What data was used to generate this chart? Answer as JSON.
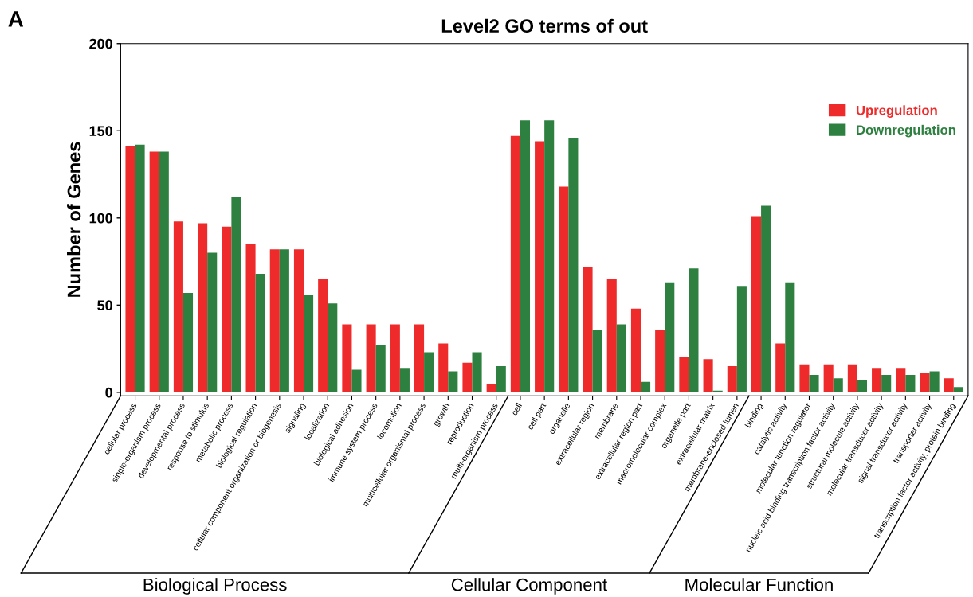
{
  "chart_data": {
    "type": "bar",
    "title": "Level2 GO terms of out",
    "ylabel": "Number of Genes",
    "categories": [
      "cellular process",
      "single-organism process",
      "developmental process",
      "response to stimulus",
      "metabolic process",
      "biological regulation",
      "cellular component organization or biogenesis",
      "signaling",
      "localization",
      "biological adhesion",
      "immune system process",
      "locomotion",
      "multicellular organismal process",
      "growth",
      "reproduction",
      "multi-organism process",
      "cell",
      "cell part",
      "organelle",
      "extracellular region",
      "membrane",
      "extracellular region part",
      "macromolecular complex",
      "organelle part",
      "extracellular matrix",
      "membrane-enclosed lumen",
      "binding",
      "catalytic activity",
      "molecular function regulator",
      "nucleic acid binding transcription factor activity",
      "structural molecule activity",
      "molecular transducer activity",
      "signal transducer activity",
      "transporter activity",
      "transcription factor activity, protein binding"
    ],
    "series": [
      {
        "name": "Upregulation",
        "color": "#ee2a2a",
        "values": [
          141,
          138,
          98,
          97,
          95,
          85,
          82,
          82,
          65,
          39,
          39,
          39,
          39,
          28,
          17,
          5,
          147,
          144,
          118,
          72,
          65,
          48,
          36,
          20,
          19,
          15,
          101,
          28,
          16,
          16,
          16,
          14,
          14,
          11,
          8
        ]
      },
      {
        "name": "Downregulation",
        "color": "#2e8040",
        "values": [
          142,
          138,
          57,
          80,
          112,
          68,
          82,
          56,
          51,
          13,
          27,
          14,
          23,
          12,
          23,
          15,
          156,
          156,
          146,
          36,
          39,
          6,
          63,
          71,
          1,
          61,
          107,
          63,
          10,
          8,
          7,
          10,
          10,
          12,
          3
        ]
      }
    ],
    "ylim": [
      -2,
      200
    ],
    "yticks": [
      0,
      50,
      100,
      150,
      200
    ],
    "grid": false,
    "legend": "top right",
    "annotations": [
      "A",
      "Biological Process",
      "Cellular Component",
      "Molecular Function"
    ]
  }
}
